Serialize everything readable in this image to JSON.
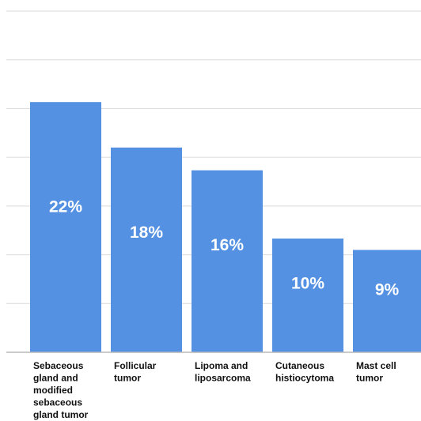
{
  "chart_data": {
    "type": "bar",
    "categories": [
      "Sebaceous gland and modified sebaceous gland tumor",
      "Follicular tumor",
      "Lipoma and liposarcoma",
      "Cutaneous histiocytoma",
      "Mast cell tumor"
    ],
    "category_label_lines": [
      [
        "Sebaceous",
        "gland and",
        "modified",
        "sebaceous",
        "gland tumor"
      ],
      [
        "Follicular",
        "tumor"
      ],
      [
        "Lipoma and",
        "liposarcoma"
      ],
      [
        "Cutaneous",
        "histiocytoma"
      ],
      [
        "Mast cell",
        "tumor"
      ]
    ],
    "values": [
      22,
      18,
      16,
      10,
      9
    ],
    "value_labels": [
      "22%",
      "18%",
      "16%",
      "10%",
      "9%"
    ],
    "ylim": [
      0,
      30
    ],
    "grid": true,
    "bar_color": "#5591E2",
    "grid_color": "#d9d9d9",
    "axis_color": "#b9b9b9"
  }
}
